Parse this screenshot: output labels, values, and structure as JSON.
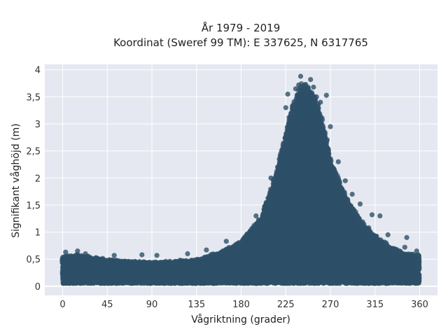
{
  "chart_data": {
    "type": "scatter",
    "title": "År 1979 - 2019",
    "subtitle": "Koordinat (Sweref 99 TM): E 337625, N 6317765",
    "xlabel": "Vågriktning (grader)",
    "ylabel": "Signifikant våghöjd (m)",
    "xlim": [
      -18,
      378
    ],
    "ylim": [
      -0.17,
      4.1
    ],
    "x_ticks": [
      0,
      45,
      90,
      135,
      180,
      225,
      270,
      315,
      360
    ],
    "x_tick_labels": [
      "0",
      "45",
      "90",
      "135",
      "180",
      "225",
      "270",
      "315",
      "360"
    ],
    "y_ticks": [
      0,
      0.5,
      1,
      1.5,
      2,
      2.5,
      3,
      3.5,
      4
    ],
    "y_tick_labels": [
      "0",
      "0,5",
      "1",
      "1,5",
      "2",
      "2,5",
      "3",
      "3,5",
      "4"
    ],
    "grid": true,
    "background_color": "#e5e8f0",
    "marker_color": "#2e5068",
    "envelope": {
      "x": [
        0,
        15,
        45,
        90,
        135,
        160,
        180,
        200,
        215,
        225,
        232,
        240,
        248,
        255,
        262,
        270,
        285,
        300,
        315,
        330,
        345,
        360
      ],
      "y_max": [
        0.55,
        0.6,
        0.5,
        0.45,
        0.5,
        0.65,
        0.85,
        1.3,
        2.1,
        2.9,
        3.4,
        3.75,
        3.75,
        3.55,
        3.1,
        2.4,
        1.7,
        1.25,
        0.95,
        0.75,
        0.62,
        0.6
      ],
      "y_min": [
        0.05,
        0.05,
        0.05,
        0.05,
        0.05,
        0.05,
        0.05,
        0.05,
        0.05,
        0.05,
        0.05,
        0.05,
        0.05,
        0.05,
        0.05,
        0.05,
        0.05,
        0.05,
        0.05,
        0.05,
        0.05,
        0.05
      ]
    },
    "points": [
      {
        "x": 3,
        "y": 0.63
      },
      {
        "x": 15,
        "y": 0.65
      },
      {
        "x": 23,
        "y": 0.6
      },
      {
        "x": 52,
        "y": 0.57
      },
      {
        "x": 80,
        "y": 0.58
      },
      {
        "x": 95,
        "y": 0.57
      },
      {
        "x": 126,
        "y": 0.6
      },
      {
        "x": 145,
        "y": 0.67
      },
      {
        "x": 165,
        "y": 0.83
      },
      {
        "x": 195,
        "y": 1.3
      },
      {
        "x": 210,
        "y": 2.0
      },
      {
        "x": 225,
        "y": 3.3
      },
      {
        "x": 227,
        "y": 3.55
      },
      {
        "x": 232,
        "y": 3.2
      },
      {
        "x": 235,
        "y": 3.65
      },
      {
        "x": 238,
        "y": 3.72
      },
      {
        "x": 240,
        "y": 3.88
      },
      {
        "x": 242,
        "y": 3.7
      },
      {
        "x": 247,
        "y": 3.6
      },
      {
        "x": 250,
        "y": 3.82
      },
      {
        "x": 253,
        "y": 3.68
      },
      {
        "x": 256,
        "y": 3.5
      },
      {
        "x": 260,
        "y": 3.4
      },
      {
        "x": 266,
        "y": 3.53
      },
      {
        "x": 270,
        "y": 2.95
      },
      {
        "x": 278,
        "y": 2.3
      },
      {
        "x": 285,
        "y": 1.95
      },
      {
        "x": 292,
        "y": 1.7
      },
      {
        "x": 300,
        "y": 1.52
      },
      {
        "x": 312,
        "y": 1.32
      },
      {
        "x": 320,
        "y": 1.3
      },
      {
        "x": 328,
        "y": 0.95
      },
      {
        "x": 345,
        "y": 0.72
      },
      {
        "x": 347,
        "y": 0.9
      },
      {
        "x": 357,
        "y": 0.65
      }
    ]
  }
}
